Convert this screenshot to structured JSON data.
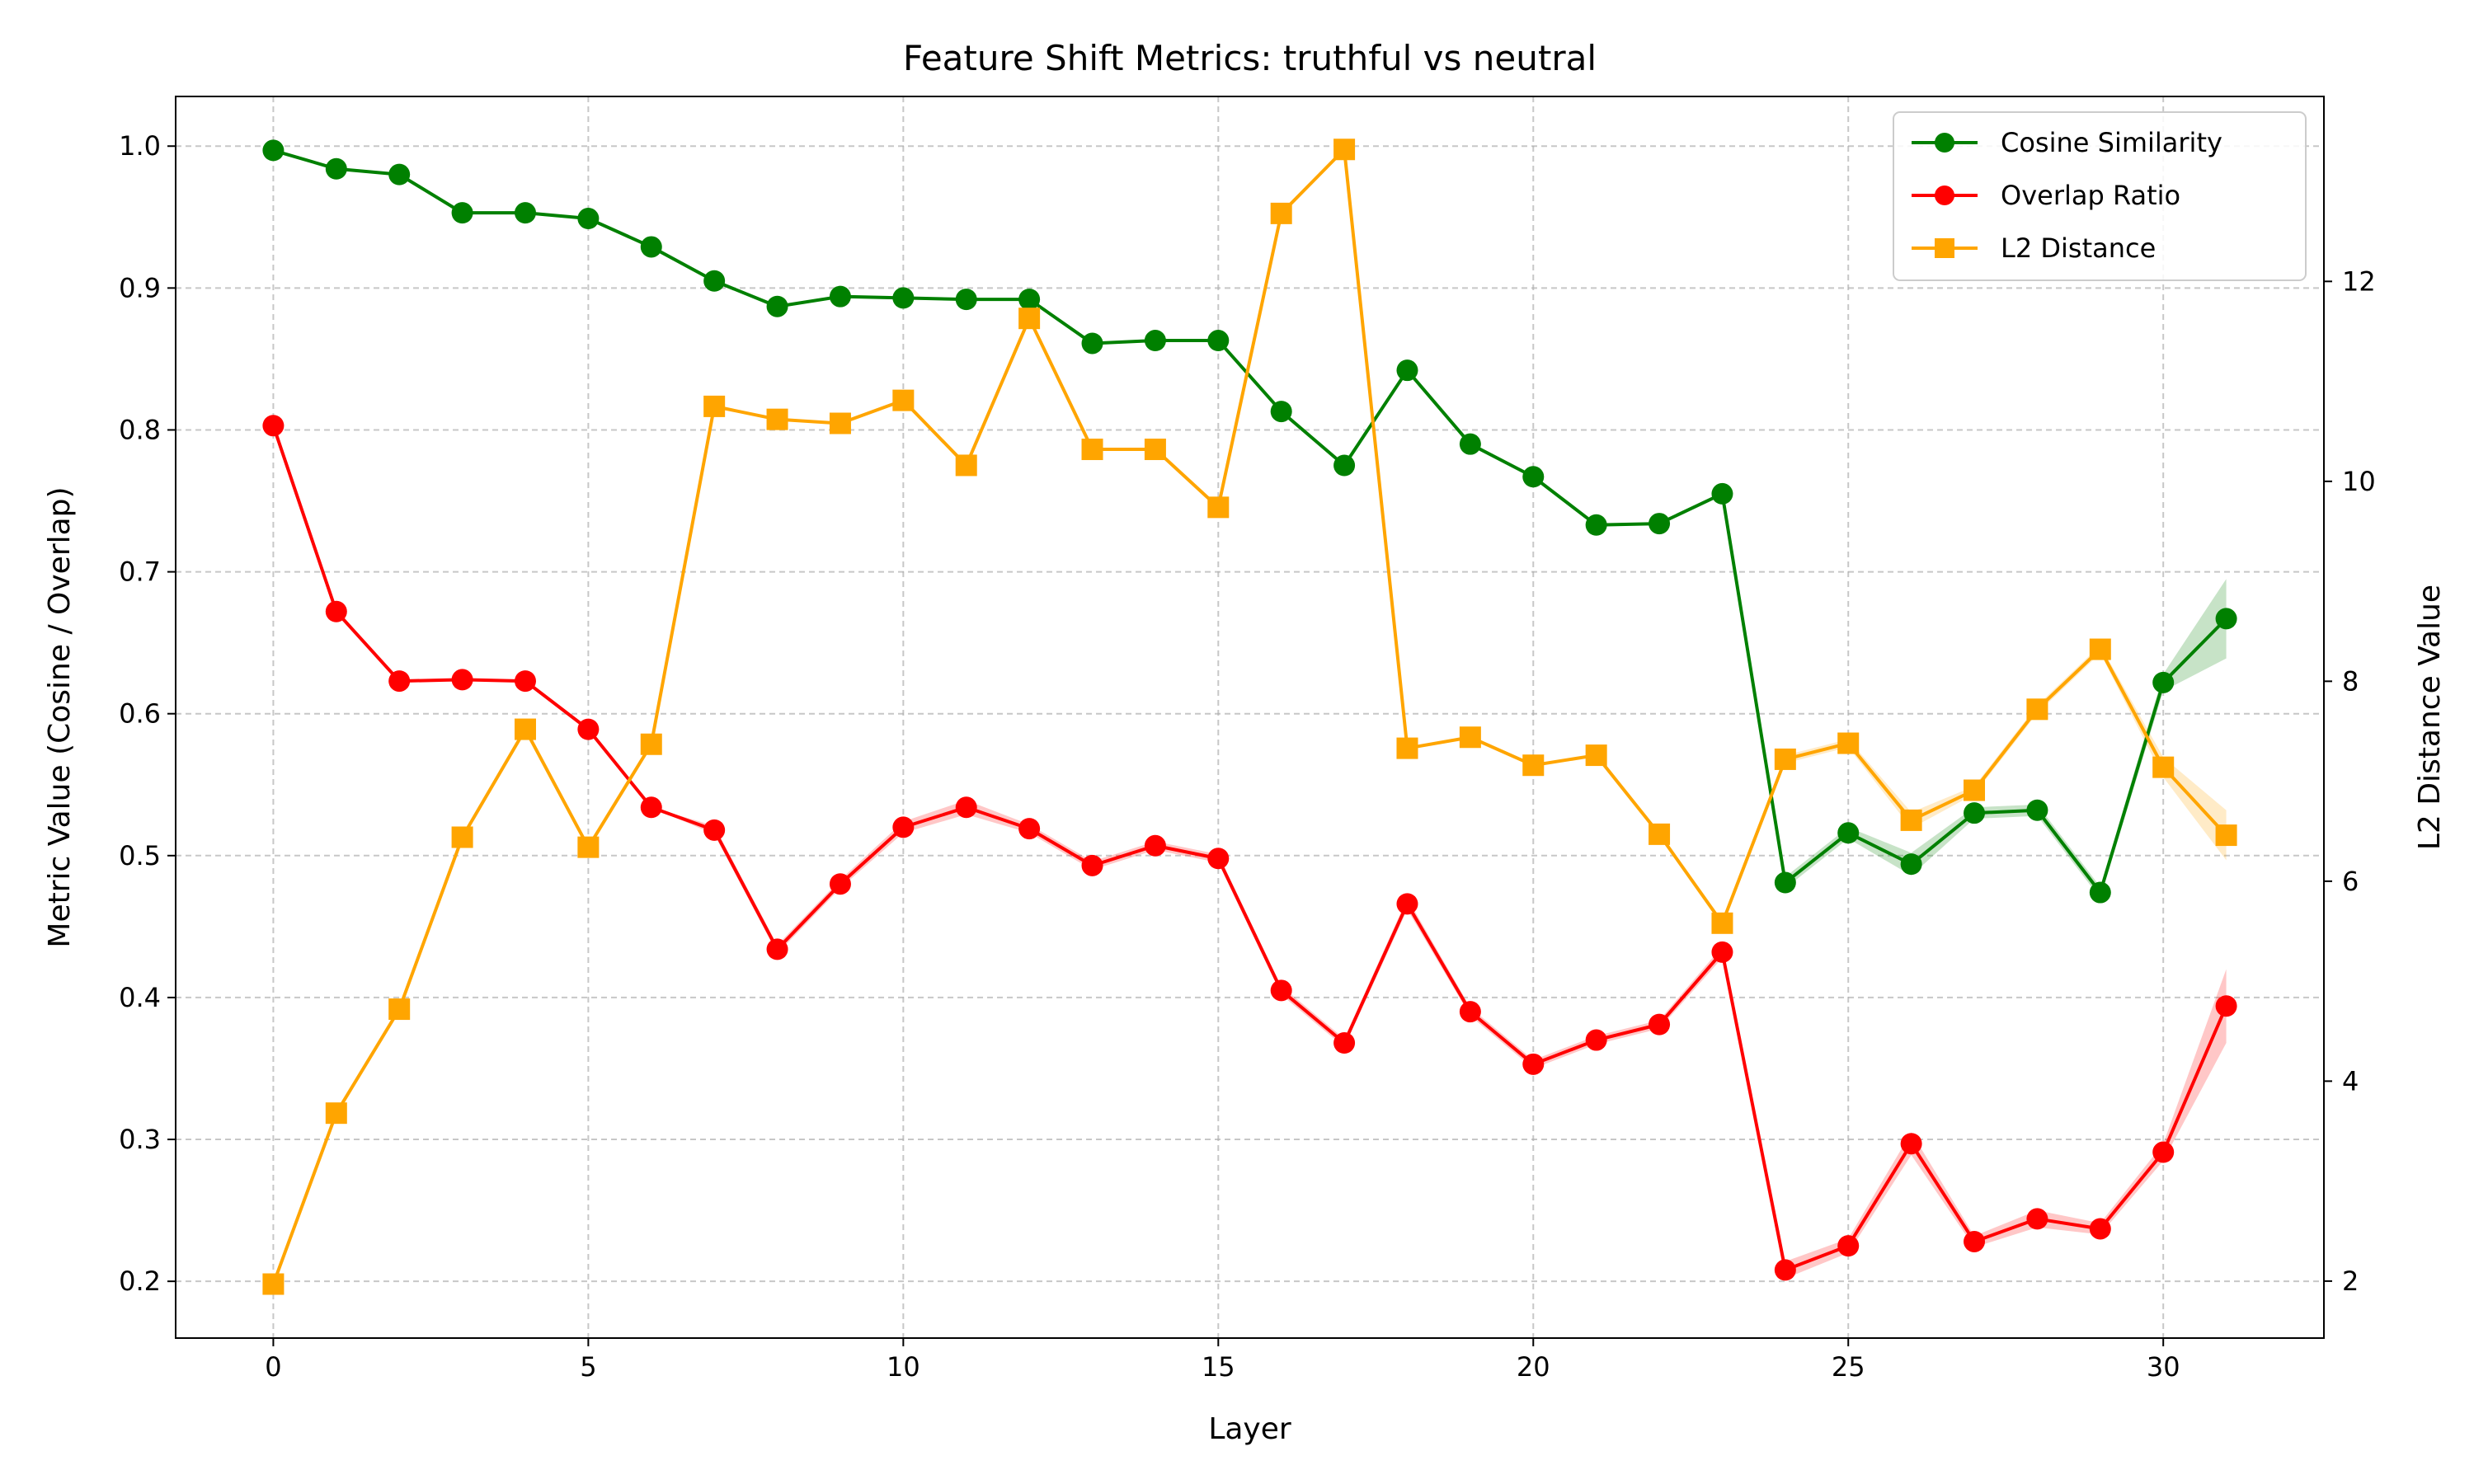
{
  "chart_data": {
    "type": "line",
    "title": "Feature Shift Metrics: truthful vs neutral",
    "xlabel": "Layer",
    "ylabel": "Metric Value (Cosine / Overlap)",
    "y2label": "L2 Distance Value",
    "xlim": [
      -1.55,
      32.55
    ],
    "ylim": [
      0.16,
      1.035
    ],
    "y2lim": [
      1.43,
      13.85
    ],
    "grid": true,
    "legend_position": "top-right",
    "xticks": [
      0,
      5,
      10,
      15,
      20,
      25,
      30
    ],
    "yticks": [
      0.2,
      0.3,
      0.4,
      0.5,
      0.6,
      0.7,
      0.8,
      0.9,
      1.0
    ],
    "y2ticks": [
      2,
      4,
      6,
      8,
      10,
      12
    ],
    "x": [
      0,
      1,
      2,
      3,
      4,
      5,
      6,
      7,
      8,
      9,
      10,
      11,
      12,
      13,
      14,
      15,
      16,
      17,
      18,
      19,
      20,
      21,
      22,
      23,
      24,
      25,
      26,
      27,
      28,
      29,
      30,
      31
    ],
    "series": [
      {
        "name": "Cosine Similarity",
        "axis": "left",
        "color": "#008000",
        "marker": "circle",
        "values": [
          0.997,
          0.984,
          0.98,
          0.953,
          0.953,
          0.949,
          0.929,
          0.905,
          0.887,
          0.894,
          0.893,
          0.892,
          0.892,
          0.861,
          0.863,
          0.863,
          0.813,
          0.775,
          0.842,
          0.79,
          0.767,
          0.733,
          0.734,
          0.755,
          0.481,
          0.516,
          0.494,
          0.53,
          0.532,
          0.474,
          0.622,
          0.667
        ],
        "band": [
          0,
          0,
          0,
          0,
          0,
          0,
          0,
          0,
          0,
          0,
          0,
          0,
          0,
          0,
          0,
          0,
          0,
          0,
          0,
          0,
          0,
          0,
          0,
          0,
          0.004,
          0.004,
          0.008,
          0.004,
          0.004,
          0.004,
          0.006,
          0.028
        ]
      },
      {
        "name": "Overlap Ratio",
        "axis": "left",
        "color": "#ff0000",
        "marker": "circle",
        "values": [
          0.803,
          0.672,
          0.623,
          0.624,
          0.623,
          0.589,
          0.534,
          0.518,
          0.434,
          0.48,
          0.52,
          0.534,
          0.519,
          0.493,
          0.507,
          0.498,
          0.405,
          0.368,
          0.466,
          0.39,
          0.353,
          0.37,
          0.381,
          0.432,
          0.208,
          0.225,
          0.297,
          0.228,
          0.244,
          0.237,
          0.291,
          0.394
        ],
        "band": [
          0,
          0,
          0,
          0,
          0,
          0,
          0,
          0.003,
          0.003,
          0.003,
          0.004,
          0.005,
          0.003,
          0.003,
          0.003,
          0.003,
          0.003,
          0.003,
          0.004,
          0.003,
          0.003,
          0.003,
          0.003,
          0.004,
          0.006,
          0.005,
          0.008,
          0.004,
          0.006,
          0.004,
          0.006,
          0.026
        ]
      },
      {
        "name": "L2 Distance",
        "axis": "right",
        "color": "#ffa500",
        "marker": "square",
        "values": [
          1.97,
          3.68,
          4.72,
          6.44,
          7.52,
          6.34,
          7.37,
          10.75,
          10.62,
          10.58,
          10.81,
          10.16,
          11.63,
          10.32,
          10.32,
          9.74,
          12.68,
          13.32,
          7.33,
          7.44,
          7.16,
          7.26,
          6.47,
          5.58,
          7.22,
          7.38,
          6.61,
          6.91,
          7.72,
          8.32,
          7.14,
          6.46
        ],
        "band": [
          0,
          0,
          0,
          0,
          0,
          0,
          0,
          0,
          0,
          0,
          0,
          0,
          0,
          0,
          0,
          0,
          0,
          0,
          0,
          0,
          0,
          0,
          0,
          0.03,
          0.04,
          0.04,
          0.08,
          0.04,
          0.04,
          0.04,
          0.1,
          0.25
        ]
      }
    ]
  }
}
